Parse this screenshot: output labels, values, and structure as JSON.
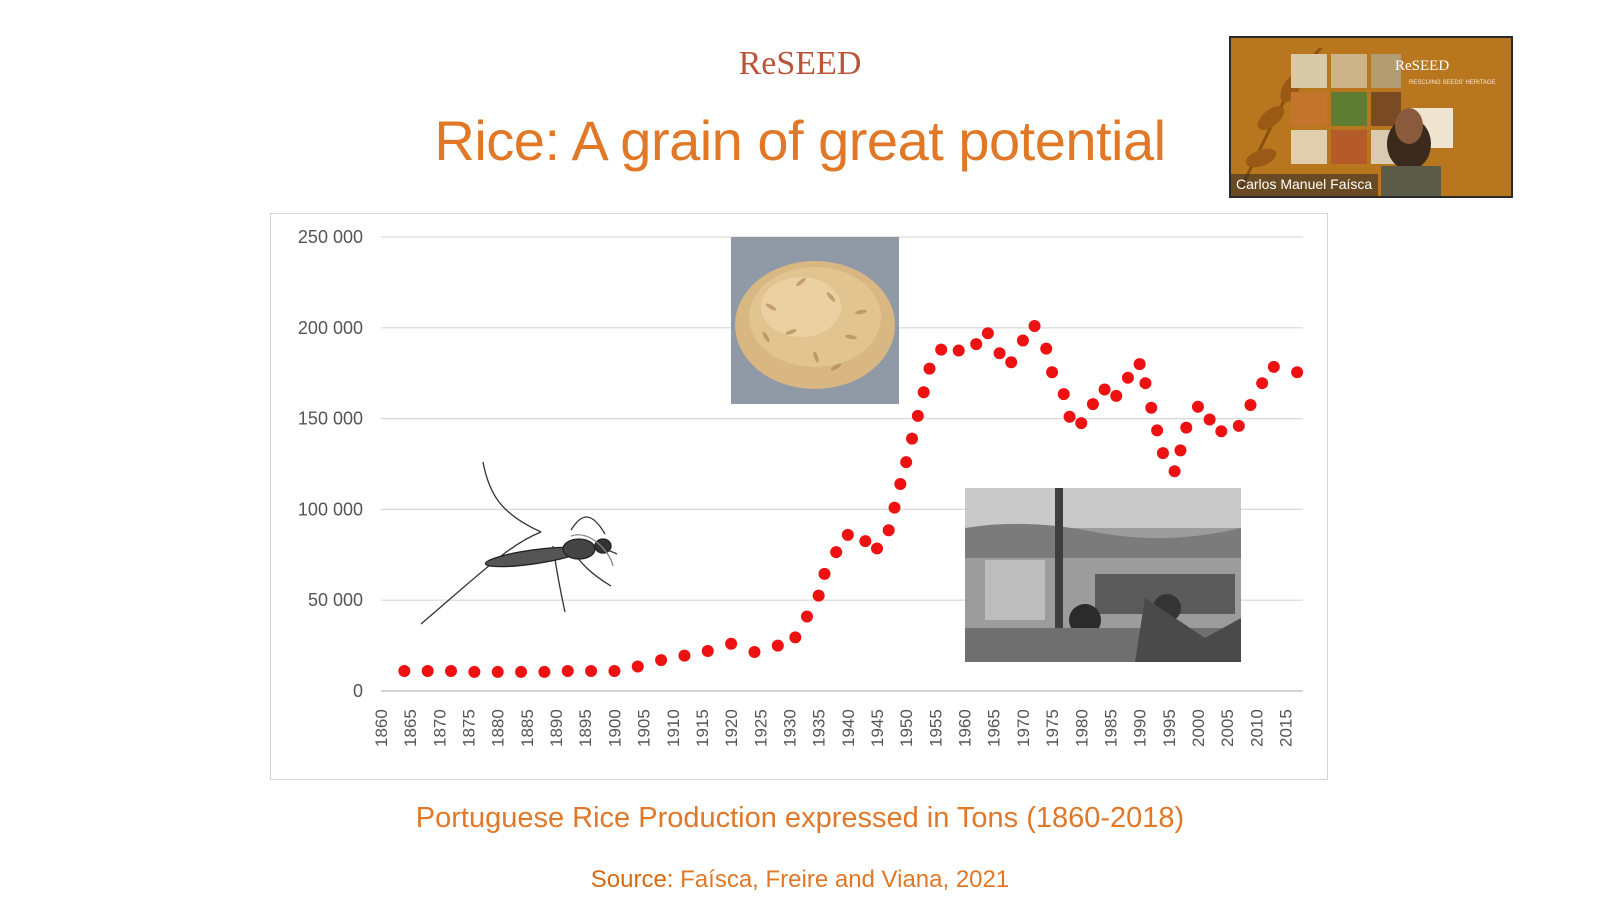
{
  "logo": {
    "text": "ReSEED"
  },
  "slide": {
    "title": "Rice: A grain of great potential",
    "caption": "Portuguese Rice Production expressed in Tons (1860-2018)",
    "source_label": "Source:",
    "source_text": "Faísca, Freire and Viana, 2021"
  },
  "video": {
    "participant_name": "Carlos Manuel Faísca",
    "slide_logo": "ReSEED"
  },
  "colors": {
    "accent": "#e07828",
    "point": "#ee1111",
    "logo": "#b8553a"
  },
  "chart_data": {
    "type": "scatter",
    "title": "",
    "xlabel": "",
    "ylabel": "",
    "y_tick_labels": [
      "0",
      "50 000",
      "100 000",
      "150 000",
      "200 000",
      "250 000"
    ],
    "x_tick_labels": [
      "1860",
      "1865",
      "1870",
      "1875",
      "1880",
      "1885",
      "1890",
      "1895",
      "1900",
      "1905",
      "1910",
      "1915",
      "1920",
      "1925",
      "1930",
      "1935",
      "1940",
      "1945",
      "1950",
      "1955",
      "1960",
      "1965",
      "1970",
      "1975",
      "1980",
      "1985",
      "1990",
      "1995",
      "2000",
      "2005",
      "2010",
      "2015"
    ],
    "ylim": [
      0,
      250000
    ],
    "xlim": [
      1860,
      2018
    ],
    "grid": true,
    "series": [
      {
        "points": [
          [
            1864,
            11000
          ],
          [
            1868,
            11000
          ],
          [
            1872,
            11000
          ],
          [
            1876,
            10500
          ],
          [
            1880,
            10500
          ],
          [
            1884,
            10500
          ],
          [
            1888,
            10500
          ],
          [
            1892,
            11000
          ],
          [
            1896,
            11000
          ],
          [
            1900,
            11000
          ],
          [
            1904,
            13500
          ],
          [
            1908,
            17000
          ],
          [
            1912,
            19500
          ],
          [
            1916,
            22000
          ],
          [
            1920,
            26000
          ],
          [
            1924,
            21500
          ],
          [
            1928,
            25000
          ],
          [
            1931,
            29500
          ],
          [
            1933,
            41000
          ],
          [
            1935,
            52500
          ],
          [
            1936,
            64500
          ],
          [
            1938,
            76500
          ],
          [
            1940,
            86000
          ],
          [
            1943,
            82500
          ],
          [
            1945,
            78500
          ],
          [
            1947,
            88500
          ],
          [
            1948,
            101000
          ],
          [
            1949,
            114000
          ],
          [
            1950,
            126000
          ],
          [
            1951,
            139000
          ],
          [
            1952,
            151500
          ],
          [
            1953,
            164500
          ],
          [
            1954,
            177500
          ],
          [
            1956,
            188000
          ],
          [
            1959,
            187500
          ],
          [
            1962,
            191000
          ],
          [
            1964,
            197000
          ],
          [
            1966,
            186000
          ],
          [
            1968,
            181000
          ],
          [
            1970,
            193000
          ],
          [
            1972,
            201000
          ],
          [
            1974,
            188500
          ],
          [
            1975,
            175500
          ],
          [
            1977,
            163500
          ],
          [
            1978,
            151000
          ],
          [
            1980,
            147500
          ],
          [
            1982,
            158000
          ],
          [
            1984,
            166000
          ],
          [
            1986,
            162500
          ],
          [
            1988,
            172500
          ],
          [
            1990,
            180000
          ],
          [
            1991,
            169500
          ],
          [
            1992,
            156000
          ],
          [
            1993,
            143500
          ],
          [
            1994,
            131000
          ],
          [
            1996,
            121000
          ],
          [
            1997,
            132500
          ],
          [
            1998,
            145000
          ],
          [
            2000,
            156500
          ],
          [
            2002,
            149500
          ],
          [
            2004,
            143000
          ],
          [
            2007,
            146000
          ],
          [
            2009,
            157500
          ],
          [
            2011,
            169500
          ],
          [
            2013,
            178500
          ],
          [
            2017,
            175500
          ]
        ]
      }
    ]
  }
}
